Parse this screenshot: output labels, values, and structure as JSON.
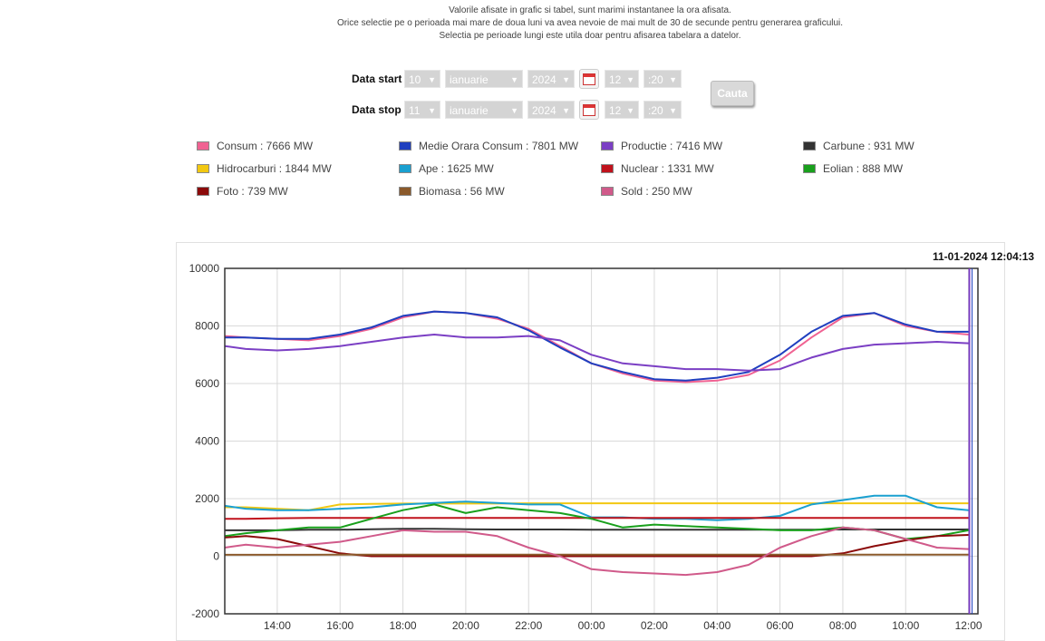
{
  "notes": {
    "line1": "Valorile afisate in grafic si tabel, sunt marimi instantanee la ora afisata.",
    "line2": "Orice selectie pe o perioada mai mare de doua luni va avea nevoie de mai mult de 30 de secunde pentru generarea graficului.",
    "line3": "Selectia pe perioade lungi este utila doar pentru afisarea tabelara a datelor."
  },
  "form": {
    "start_label": "Data start",
    "stop_label": "Data stop",
    "start": {
      "day": "10",
      "month": "ianuarie",
      "year": "2024",
      "hour": "12",
      "minute": ":20"
    },
    "stop": {
      "day": "11",
      "month": "ianuarie",
      "year": "2024",
      "hour": "12",
      "minute": ":20"
    },
    "search_label": "Cauta",
    "calendar_icon": "calendar-icon"
  },
  "legend": [
    {
      "label": "Consum : 7666 MW",
      "color": "#f06292"
    },
    {
      "label": "Medie Orara Consum : 7801 MW",
      "color": "#1f3fbf"
    },
    {
      "label": "Productie : 7416 MW",
      "color": "#7b3fc4"
    },
    {
      "label": "Carbune : 931 MW",
      "color": "#333333"
    },
    {
      "label": "Hidrocarburi : 1844 MW",
      "color": "#f2c811"
    },
    {
      "label": "Ape : 1625 MW",
      "color": "#1aa0d0"
    },
    {
      "label": "Nuclear : 1331 MW",
      "color": "#c0121c"
    },
    {
      "label": "Eolian : 888 MW",
      "color": "#19a01c"
    },
    {
      "label": "Foto : 739 MW",
      "color": "#8b0a0a"
    },
    {
      "label": "Biomasa : 56 MW",
      "color": "#8b5a2b"
    },
    {
      "label": "Sold : 250 MW",
      "color": "#d05a8a"
    }
  ],
  "chart_data": {
    "type": "line",
    "timestamp": "11-01-2024 12:04:13",
    "x_tick_labels": [
      "14:00",
      "16:00",
      "18:00",
      "20:00",
      "22:00",
      "00:00",
      "02:00",
      "04:00",
      "06:00",
      "08:00",
      "10:00",
      "12:00"
    ],
    "y_tick_labels": [
      "10000",
      "8000",
      "6000",
      "4000",
      "2000",
      "0",
      "-2000"
    ],
    "ylim": [
      -2000,
      10000
    ],
    "grid": true,
    "x_hours": [
      12.33,
      13,
      14,
      15,
      16,
      17,
      18,
      19,
      20,
      21,
      22,
      23,
      24,
      25,
      26,
      27,
      28,
      29,
      30,
      31,
      32,
      33,
      34,
      35,
      36
    ],
    "series": [
      {
        "name": "Consum",
        "color": "#f06292",
        "values": [
          7650,
          7600,
          7550,
          7500,
          7650,
          7900,
          8300,
          8500,
          8450,
          8250,
          7900,
          7300,
          6700,
          6350,
          6100,
          6050,
          6100,
          6300,
          6800,
          7600,
          8300,
          8450,
          8000,
          7800,
          7700
        ]
      },
      {
        "name": "Medie Orara Consum",
        "color": "#1f3fbf",
        "values": [
          7600,
          7600,
          7550,
          7550,
          7700,
          7950,
          8350,
          8500,
          8450,
          8300,
          7850,
          7250,
          6700,
          6400,
          6150,
          6100,
          6200,
          6400,
          7000,
          7800,
          8350,
          8450,
          8050,
          7800,
          7800
        ]
      },
      {
        "name": "Productie",
        "color": "#7b3fc4",
        "values": [
          7300,
          7200,
          7150,
          7200,
          7300,
          7450,
          7600,
          7700,
          7600,
          7600,
          7650,
          7500,
          7000,
          6700,
          6600,
          6500,
          6500,
          6450,
          6500,
          6900,
          7200,
          7350,
          7400,
          7450,
          7400
        ]
      },
      {
        "name": "Carbune",
        "color": "#333333",
        "values": [
          900,
          900,
          900,
          920,
          920,
          940,
          950,
          950,
          940,
          930,
          930,
          930,
          920,
          920,
          920,
          920,
          920,
          920,
          920,
          920,
          930,
          930,
          930,
          930,
          930
        ]
      },
      {
        "name": "Hidrocarburi",
        "color": "#f2c811",
        "values": [
          1700,
          1700,
          1650,
          1600,
          1800,
          1820,
          1830,
          1830,
          1830,
          1830,
          1840,
          1840,
          1840,
          1840,
          1840,
          1840,
          1840,
          1840,
          1840,
          1840,
          1840,
          1840,
          1840,
          1840,
          1840
        ]
      },
      {
        "name": "Ape",
        "color": "#1aa0d0",
        "values": [
          1750,
          1650,
          1600,
          1600,
          1650,
          1700,
          1800,
          1850,
          1900,
          1850,
          1800,
          1800,
          1350,
          1350,
          1300,
          1300,
          1250,
          1300,
          1400,
          1800,
          1950,
          2100,
          2100,
          1700,
          1600
        ]
      },
      {
        "name": "Nuclear",
        "color": "#c0121c",
        "values": [
          1300,
          1300,
          1320,
          1330,
          1330,
          1330,
          1330,
          1330,
          1330,
          1330,
          1330,
          1330,
          1330,
          1330,
          1330,
          1330,
          1330,
          1330,
          1330,
          1330,
          1330,
          1330,
          1330,
          1330,
          1330
        ]
      },
      {
        "name": "Eolian",
        "color": "#19a01c",
        "values": [
          700,
          800,
          900,
          1000,
          1000,
          1300,
          1600,
          1800,
          1500,
          1700,
          1600,
          1500,
          1300,
          1000,
          1100,
          1050,
          1000,
          950,
          900,
          900,
          1000,
          900,
          600,
          700,
          900
        ]
      },
      {
        "name": "Foto",
        "color": "#8b0a0a",
        "values": [
          650,
          700,
          600,
          350,
          100,
          0,
          0,
          0,
          0,
          0,
          0,
          0,
          0,
          0,
          0,
          0,
          0,
          0,
          0,
          0,
          100,
          350,
          550,
          700,
          740
        ]
      },
      {
        "name": "Biomasa",
        "color": "#8b5a2b",
        "values": [
          50,
          50,
          50,
          50,
          55,
          55,
          55,
          55,
          55,
          55,
          55,
          55,
          55,
          55,
          55,
          55,
          55,
          55,
          55,
          55,
          55,
          55,
          55,
          55,
          56
        ]
      },
      {
        "name": "Sold",
        "color": "#d05a8a",
        "values": [
          300,
          400,
          300,
          400,
          500,
          700,
          900,
          850,
          850,
          700,
          300,
          0,
          -450,
          -550,
          -600,
          -650,
          -550,
          -300,
          300,
          700,
          1000,
          900,
          600,
          300,
          250
        ]
      }
    ]
  }
}
